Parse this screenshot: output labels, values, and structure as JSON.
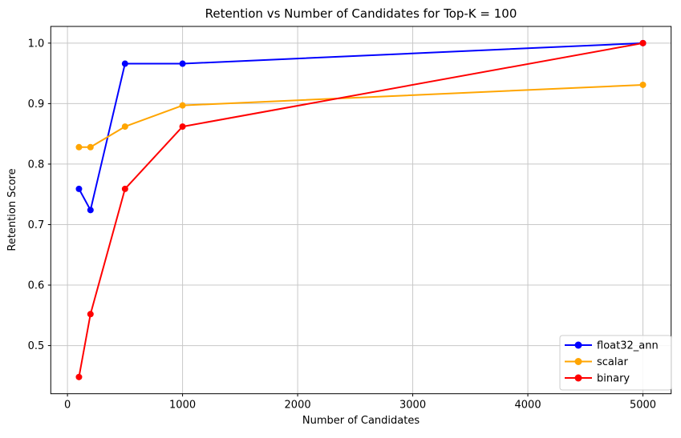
{
  "chart_data": {
    "type": "line",
    "title": "Retention vs Number of Candidates for Top-K = 100",
    "xlabel": "Number of Candidates",
    "ylabel": "Retention Score",
    "x": [
      100,
      200,
      500,
      1000,
      5000
    ],
    "series": [
      {
        "name": "float32_ann",
        "color": "#0000ff",
        "values": [
          0.759,
          0.724,
          0.966,
          0.966,
          1.0
        ]
      },
      {
        "name": "scalar",
        "color": "#ffa500",
        "values": [
          0.828,
          0.828,
          0.862,
          0.897,
          0.931
        ]
      },
      {
        "name": "binary",
        "color": "#ff0000",
        "values": [
          0.448,
          0.552,
          0.759,
          0.862,
          1.0
        ]
      }
    ],
    "xticks": [
      0,
      1000,
      2000,
      3000,
      4000,
      5000
    ],
    "yticks": [
      0.5,
      0.6,
      0.7,
      0.8,
      0.9,
      1.0
    ],
    "xlim": [
      -145,
      5245
    ],
    "ylim": [
      0.4204,
      1.0276
    ],
    "grid": true,
    "legend": {
      "position": "lower right",
      "entries": [
        "float32_ann",
        "scalar",
        "binary"
      ]
    }
  },
  "style": {
    "background": "#ffffff",
    "grid_color": "#c8c8c8",
    "spine_color": "#000000",
    "text_color": "#000000",
    "legend_border": "#cccccc",
    "line_width": 2,
    "marker_radius": 4
  }
}
